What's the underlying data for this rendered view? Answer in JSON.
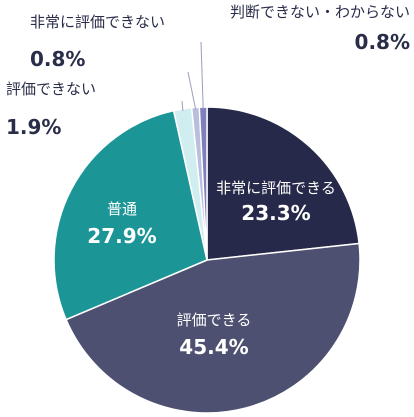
{
  "chart_data": {
    "type": "pie",
    "start_angle_deg": 0,
    "direction": "clockwise",
    "slices": [
      {
        "label": "非常に評価できる",
        "value": 23.3,
        "value_label": "23.3%",
        "color": "#262949",
        "label_style": "inside"
      },
      {
        "label": "評価できる",
        "value": 45.4,
        "value_label": "45.4%",
        "color": "#4e5072",
        "label_style": "inside"
      },
      {
        "label": "普通",
        "value": 27.9,
        "value_label": "27.9%",
        "color": "#1c9597",
        "label_style": "inside"
      },
      {
        "label": "評価できない",
        "value": 1.9,
        "value_label": "1.9%",
        "color": "#d0eef0",
        "label_style": "outside"
      },
      {
        "label": "非常に評価できない",
        "value": 0.8,
        "value_label": "0.8%",
        "color": "#b9bedd",
        "label_style": "outside"
      },
      {
        "label": "判断できない・わからない",
        "value": 0.8,
        "value_label": "0.8%",
        "color": "#7f7fbd",
        "label_style": "outside"
      }
    ]
  }
}
